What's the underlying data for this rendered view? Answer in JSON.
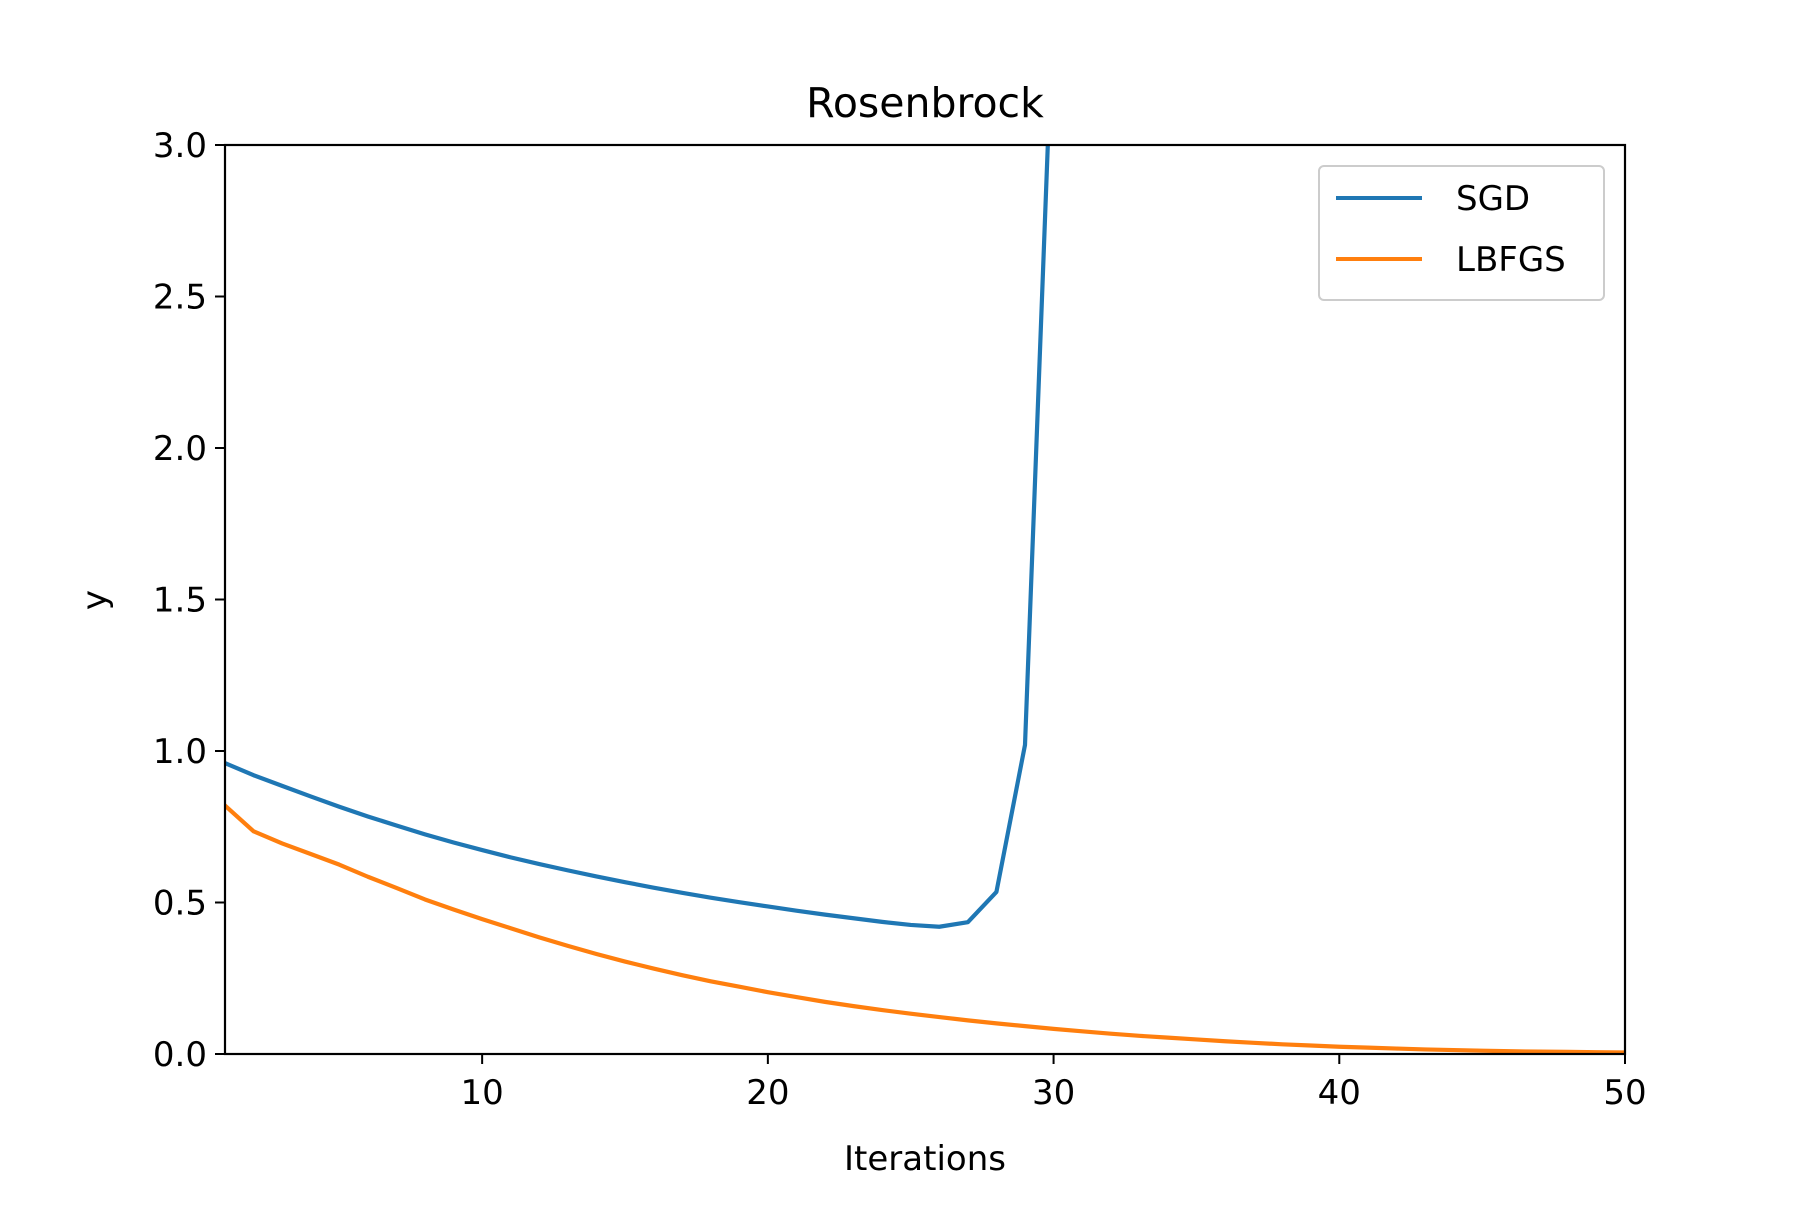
{
  "chart_data": {
    "type": "line",
    "title": "Rosenbrock",
    "xlabel": "Iterations",
    "ylabel": "y",
    "xlim": [
      1,
      50
    ],
    "ylim": [
      0,
      3.0
    ],
    "xticks": [
      10,
      20,
      30,
      40,
      50
    ],
    "xtick_labels": [
      "10",
      "20",
      "30",
      "40",
      "50"
    ],
    "yticks": [
      0,
      0.5,
      1.0,
      1.5,
      2.0,
      2.5,
      3.0
    ],
    "ytick_labels": [
      "0.0",
      "0.5",
      "1.0",
      "1.5",
      "2.0",
      "2.5",
      "3.0"
    ],
    "grid": false,
    "legend": "top-right",
    "series": [
      {
        "name": "SGD",
        "color": "#1f77b4",
        "x": [
          1,
          2,
          3,
          4,
          5,
          6,
          7,
          8,
          9,
          10,
          11,
          12,
          13,
          14,
          15,
          16,
          17,
          18,
          19,
          20,
          21,
          22,
          23,
          24,
          25,
          26,
          27,
          28,
          29,
          30
        ],
        "y": [
          0.96,
          0.92,
          0.885,
          0.85,
          0.816,
          0.784,
          0.754,
          0.725,
          0.698,
          0.673,
          0.649,
          0.627,
          0.606,
          0.586,
          0.567,
          0.549,
          0.532,
          0.516,
          0.501,
          0.487,
          0.473,
          0.46,
          0.448,
          0.436,
          0.426,
          0.42,
          0.435,
          0.535,
          1.02,
          3.5
        ]
      },
      {
        "name": "LBFGS",
        "color": "#ff7f0e",
        "x": [
          1,
          2,
          3,
          4,
          5,
          6,
          7,
          8,
          9,
          10,
          11,
          12,
          13,
          14,
          15,
          16,
          17,
          18,
          19,
          20,
          21,
          22,
          23,
          24,
          25,
          26,
          27,
          28,
          29,
          30,
          31,
          32,
          33,
          34,
          35,
          36,
          37,
          38,
          39,
          40,
          41,
          42,
          43,
          44,
          45,
          46,
          47,
          48,
          49,
          50
        ],
        "y": [
          0.82,
          0.735,
          0.695,
          0.66,
          0.625,
          0.585,
          0.548,
          0.51,
          0.477,
          0.445,
          0.415,
          0.385,
          0.357,
          0.33,
          0.305,
          0.282,
          0.26,
          0.24,
          0.222,
          0.204,
          0.188,
          0.172,
          0.158,
          0.145,
          0.133,
          0.122,
          0.111,
          0.101,
          0.092,
          0.083,
          0.075,
          0.067,
          0.06,
          0.054,
          0.048,
          0.042,
          0.037,
          0.032,
          0.028,
          0.024,
          0.021,
          0.018,
          0.015,
          0.013,
          0.011,
          0.009,
          0.008,
          0.007,
          0.006,
          0.005
        ]
      }
    ]
  }
}
